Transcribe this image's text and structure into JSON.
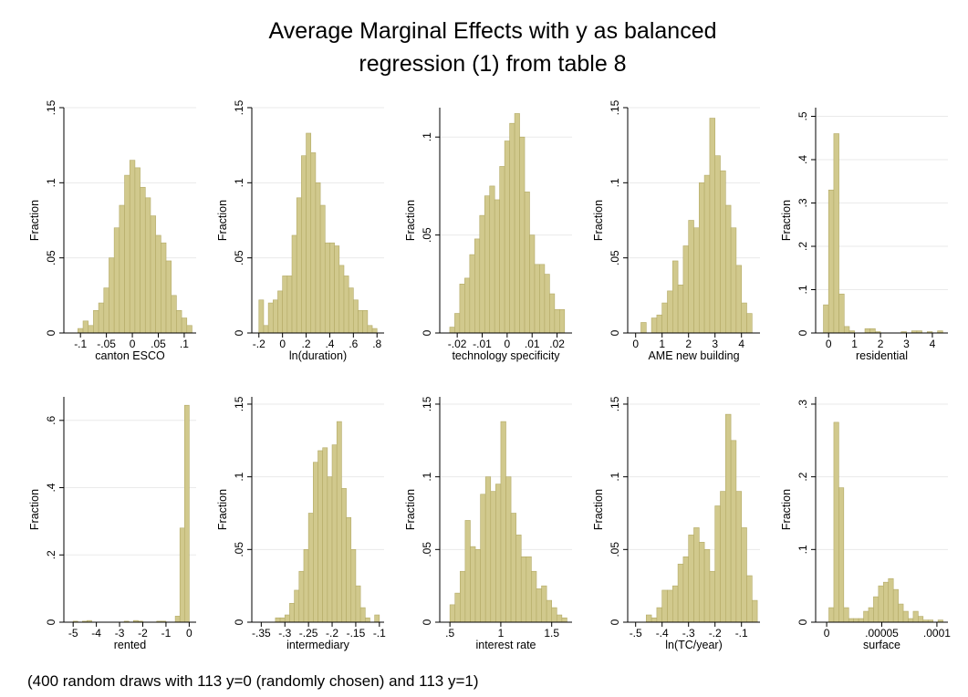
{
  "title": [
    "Average Marginal Effects with y as balanced",
    "regression (1) from table 8"
  ],
  "note": "(400 random draws with 113 y=0 (randomly chosen) and 113 y=1)",
  "chart_data": [
    {
      "type": "histogram",
      "xlabel": "canton ESCO",
      "ylabel": "Fraction",
      "color": "#d1c98d",
      "bins": [
        -0.105,
        -0.095,
        -0.085,
        -0.075,
        -0.065,
        -0.055,
        -0.045,
        -0.035,
        -0.025,
        -0.015,
        -0.005,
        0.005,
        0.015,
        0.025,
        0.035,
        0.045,
        0.055,
        0.065,
        0.075,
        0.085,
        0.095,
        0.105,
        0.115
      ],
      "values": [
        0.003,
        0.008,
        0.005,
        0.015,
        0.02,
        0.03,
        0.05,
        0.07,
        0.085,
        0.105,
        0.115,
        0.11,
        0.097,
        0.09,
        0.078,
        0.065,
        0.06,
        0.048,
        0.025,
        0.015,
        0.01,
        0.005
      ],
      "xlim": [
        -0.132,
        0.123
      ],
      "ylim": [
        0,
        0.15
      ],
      "xticks": [
        {
          "value": -0.1,
          "label": "-.1"
        },
        {
          "value": -0.05,
          "label": "-.05"
        },
        0,
        {
          "value": 0.05,
          "label": ".05"
        },
        {
          "value": 0.1,
          "label": ".1"
        }
      ],
      "yticks": [
        0,
        {
          "value": 0.05,
          "label": ".05"
        },
        {
          "value": 0.1,
          "label": ".1"
        },
        {
          "value": 0.15,
          "label": ".15"
        }
      ]
    },
    {
      "type": "histogram",
      "xlabel": "ln(duration)",
      "ylabel": "Fraction",
      "color": "#d1c98d",
      "bins": [
        -0.2,
        -0.16,
        -0.12,
        -0.08,
        -0.04,
        0,
        0.04,
        0.08,
        0.12,
        0.16,
        0.2,
        0.24,
        0.28,
        0.32,
        0.36,
        0.4,
        0.44,
        0.48,
        0.52,
        0.56,
        0.6,
        0.64,
        0.68,
        0.72,
        0.76,
        0.8
      ],
      "values": [
        0.022,
        0.005,
        0.02,
        0.022,
        0.028,
        0.038,
        0.038,
        0.065,
        0.09,
        0.118,
        0.133,
        0.12,
        0.1,
        0.085,
        0.06,
        0.06,
        0.058,
        0.045,
        0.038,
        0.03,
        0.022,
        0.015,
        0.015,
        0.005,
        0.003
      ],
      "xlim": [
        -0.26,
        0.86
      ],
      "ylim": [
        0,
        0.15
      ],
      "xticks": [
        {
          "value": -0.2,
          "label": "-.2"
        },
        0,
        {
          "value": 0.2,
          "label": ".2"
        },
        {
          "value": 0.4,
          "label": ".4"
        },
        {
          "value": 0.6,
          "label": ".6"
        },
        {
          "value": 0.8,
          "label": ".8"
        }
      ],
      "yticks": [
        0,
        {
          "value": 0.05,
          "label": ".05"
        },
        {
          "value": 0.1,
          "label": ".1"
        },
        {
          "value": 0.15,
          "label": ".15"
        }
      ]
    },
    {
      "type": "histogram",
      "xlabel": "technology specificity",
      "ylabel": "Fraction",
      "color": "#d1c98d",
      "bins": [
        -0.023,
        -0.021,
        -0.019,
        -0.017,
        -0.015,
        -0.013,
        -0.011,
        -0.009,
        -0.007,
        -0.005,
        -0.003,
        -0.001,
        0.001,
        0.003,
        0.005,
        0.007,
        0.009,
        0.011,
        0.013,
        0.015,
        0.017,
        0.019,
        0.021,
        0.023
      ],
      "values": [
        0.003,
        0.01,
        0.025,
        0.028,
        0.04,
        0.048,
        0.06,
        0.07,
        0.075,
        0.068,
        0.085,
        0.098,
        0.107,
        0.112,
        0.1,
        0.072,
        0.05,
        0.035,
        0.035,
        0.03,
        0.02,
        0.012,
        0.012
      ],
      "xlim": [
        -0.027,
        0.026
      ],
      "ylim": [
        0,
        0.115
      ],
      "xticks": [
        {
          "value": -0.02,
          "label": "-.02"
        },
        {
          "value": -0.01,
          "label": "-.01"
        },
        0,
        {
          "value": 0.01,
          "label": ".01"
        },
        {
          "value": 0.02,
          "label": ".02"
        }
      ],
      "yticks": [
        0,
        {
          "value": 0.05,
          "label": ".05"
        },
        {
          "value": 0.1,
          "label": ".1"
        }
      ]
    },
    {
      "type": "histogram",
      "xlabel": "AME new building",
      "ylabel": "Fraction",
      "color": "#d1c98d",
      "bins": [
        0.2,
        0.4,
        0.6,
        0.8,
        1.0,
        1.2,
        1.4,
        1.6,
        1.8,
        2.0,
        2.2,
        2.4,
        2.6,
        2.8,
        3.0,
        3.2,
        3.4,
        3.6,
        3.8,
        4.0,
        4.2,
        4.4
      ],
      "values": [
        0.007,
        0,
        0.01,
        0.012,
        0.02,
        0.028,
        0.048,
        0.032,
        0.058,
        0.075,
        0.07,
        0.1,
        0.105,
        0.143,
        0.118,
        0.108,
        0.085,
        0.07,
        0.045,
        0.02,
        0.013
      ],
      "xlim": [
        -0.3,
        4.7
      ],
      "ylim": [
        0,
        0.15
      ],
      "xticks": [
        0,
        1,
        2,
        3,
        4
      ],
      "yticks": [
        0,
        {
          "value": 0.05,
          "label": ".05"
        },
        {
          "value": 0.1,
          "label": ".1"
        },
        {
          "value": 0.15,
          "label": ".15"
        }
      ]
    },
    {
      "type": "histogram",
      "xlabel": "residential",
      "ylabel": "Fraction",
      "color": "#d1c98d",
      "bins": [
        -0.2,
        0,
        0.2,
        0.4,
        0.6,
        0.8,
        1.0,
        1.2,
        1.4,
        1.6,
        1.8,
        2.0,
        2.2,
        2.4,
        2.6,
        2.8,
        3.0,
        3.2,
        3.4,
        3.6,
        3.8,
        4.0,
        4.2,
        4.4
      ],
      "values": [
        0.065,
        0.33,
        0.46,
        0.09,
        0.015,
        0.005,
        0,
        0,
        0.01,
        0.01,
        0.003,
        0,
        0,
        0,
        0,
        0.003,
        0,
        0.005,
        0.005,
        0,
        0.003,
        0,
        0.005
      ],
      "xlim": [
        -0.5,
        4.6
      ],
      "ylim": [
        0,
        0.52
      ],
      "xticks": [
        0,
        1,
        2,
        3,
        4
      ],
      "yticks": [
        0,
        {
          "value": 0.1,
          "label": ".1"
        },
        {
          "value": 0.2,
          "label": ".2"
        },
        {
          "value": 0.3,
          "label": ".3"
        },
        {
          "value": 0.4,
          "label": ".4"
        },
        {
          "value": 0.5,
          "label": ".5"
        }
      ]
    },
    {
      "type": "histogram",
      "xlabel": "rented",
      "ylabel": "Fraction",
      "color": "#d1c98d",
      "bins": [
        -5.2,
        -5.0,
        -4.8,
        -4.6,
        -4.4,
        -4.2,
        -4.0,
        -3.8,
        -3.6,
        -3.4,
        -3.2,
        -3.0,
        -2.8,
        -2.6,
        -2.4,
        -2.2,
        -2.0,
        -1.8,
        -1.6,
        -1.4,
        -1.2,
        -1.0,
        -0.8,
        -0.6,
        -0.4,
        -0.2,
        0
      ],
      "values": [
        0,
        0.003,
        0,
        0.003,
        0.005,
        0,
        0,
        0,
        0,
        0,
        0,
        0,
        0.003,
        0,
        0.005,
        0.003,
        0,
        0,
        0,
        0.003,
        0.003,
        0,
        0,
        0.018,
        0.28,
        0.645
      ],
      "xlim": [
        -5.4,
        0.3
      ],
      "ylim": [
        0,
        0.67
      ],
      "xticks": [
        -5,
        -4,
        -3,
        -2,
        -1,
        0
      ],
      "yticks": [
        0,
        {
          "value": 0.2,
          "label": ".2"
        },
        {
          "value": 0.4,
          "label": ".4"
        },
        {
          "value": 0.6,
          "label": ".6"
        }
      ]
    },
    {
      "type": "histogram",
      "xlabel": "intermediary",
      "ylabel": "Fraction",
      "color": "#d1c98d",
      "bins": [
        -0.32,
        -0.31,
        -0.3,
        -0.29,
        -0.28,
        -0.27,
        -0.26,
        -0.25,
        -0.24,
        -0.23,
        -0.22,
        -0.21,
        -0.2,
        -0.19,
        -0.18,
        -0.17,
        -0.16,
        -0.15,
        -0.14,
        -0.13,
        -0.12,
        -0.11,
        -0.1
      ],
      "values": [
        0.003,
        0.003,
        0.005,
        0.013,
        0.022,
        0.035,
        0.05,
        0.075,
        0.11,
        0.118,
        0.12,
        0.1,
        0.122,
        0.138,
        0.092,
        0.072,
        0.05,
        0.025,
        0.01,
        0.003,
        0,
        0.005
      ],
      "xlim": [
        -0.37,
        -0.09
      ],
      "ylim": [
        0,
        0.155
      ],
      "xticks": [
        {
          "value": -0.35,
          "label": "-.35"
        },
        {
          "value": -0.3,
          "label": "-.3"
        },
        {
          "value": -0.25,
          "label": "-.25"
        },
        {
          "value": -0.2,
          "label": "-.2"
        },
        {
          "value": -0.15,
          "label": "-.15"
        },
        {
          "value": -0.1,
          "label": "-.1"
        }
      ],
      "yticks": [
        0,
        {
          "value": 0.05,
          "label": ".05"
        },
        {
          "value": 0.1,
          "label": ".1"
        },
        {
          "value": 0.15,
          "label": ".15"
        }
      ]
    },
    {
      "type": "histogram",
      "xlabel": "interest rate",
      "ylabel": "Fraction",
      "color": "#d1c98d",
      "bins": [
        0.5,
        0.55,
        0.6,
        0.65,
        0.7,
        0.75,
        0.8,
        0.85,
        0.9,
        0.95,
        1.0,
        1.05,
        1.1,
        1.15,
        1.2,
        1.25,
        1.3,
        1.35,
        1.4,
        1.45,
        1.5,
        1.55,
        1.6,
        1.65
      ],
      "values": [
        0.012,
        0.02,
        0.035,
        0.07,
        0.052,
        0.05,
        0.088,
        0.1,
        0.09,
        0.095,
        0.138,
        0.1,
        0.075,
        0.06,
        0.045,
        0.045,
        0.035,
        0.023,
        0.025,
        0.015,
        0.01,
        0.005,
        0.003
      ],
      "xlim": [
        0.4,
        1.7
      ],
      "ylim": [
        0,
        0.155
      ],
      "xticks": [
        {
          "value": 0.5,
          "label": ".5"
        },
        1,
        1.5
      ],
      "yticks": [
        0,
        {
          "value": 0.05,
          "label": ".05"
        },
        {
          "value": 0.1,
          "label": ".1"
        },
        {
          "value": 0.15,
          "label": ".15"
        }
      ]
    },
    {
      "type": "histogram",
      "xlabel": "ln(TC/year)",
      "ylabel": "Fraction",
      "color": "#d1c98d",
      "bins": [
        -0.46,
        -0.44,
        -0.42,
        -0.4,
        -0.38,
        -0.36,
        -0.34,
        -0.32,
        -0.3,
        -0.28,
        -0.26,
        -0.24,
        -0.22,
        -0.2,
        -0.18,
        -0.16,
        -0.14,
        -0.12,
        -0.1,
        -0.08,
        -0.06,
        -0.04
      ],
      "values": [
        0.005,
        0.003,
        0.01,
        0.022,
        0.022,
        0.025,
        0.04,
        0.045,
        0.06,
        0.065,
        0.055,
        0.05,
        0.035,
        0.08,
        0.09,
        0.143,
        0.125,
        0.09,
        0.065,
        0.032,
        0.015
      ],
      "xlim": [
        -0.53,
        -0.03
      ],
      "ylim": [
        0,
        0.155
      ],
      "xticks": [
        {
          "value": -0.5,
          "label": "-.5"
        },
        {
          "value": -0.4,
          "label": "-.4"
        },
        {
          "value": -0.3,
          "label": "-.3"
        },
        {
          "value": -0.2,
          "label": "-.2"
        },
        {
          "value": -0.1,
          "label": "-.1"
        }
      ],
      "yticks": [
        0,
        {
          "value": 0.05,
          "label": ".05"
        },
        {
          "value": 0.1,
          "label": ".1"
        },
        {
          "value": 0.15,
          "label": ".15"
        }
      ]
    },
    {
      "type": "histogram",
      "xlabel": "surface",
      "ylabel": "Fraction",
      "color": "#d1c98d",
      "bins": [
        2e-06,
        6.5e-06,
        1.1e-05,
        1.55e-05,
        2e-05,
        2.45e-05,
        2.9e-05,
        3.35e-05,
        3.8e-05,
        4.25e-05,
        4.7e-05,
        5.15e-05,
        5.6e-05,
        6.05e-05,
        6.5e-05,
        6.95e-05,
        7.4e-05,
        7.85e-05,
        8.3e-05,
        8.75e-05,
        9.2e-05,
        9.65e-05,
        0.000101,
        0.0001055
      ],
      "values": [
        0.02,
        0.275,
        0.185,
        0.02,
        0.005,
        0.005,
        0.005,
        0.015,
        0.02,
        0.035,
        0.05,
        0.055,
        0.06,
        0.045,
        0.025,
        0.015,
        0.005,
        0.015,
        0.008,
        0.003,
        0.003,
        0,
        0.003
      ],
      "xlim": [
        -1e-05,
        0.00011
      ],
      "ylim": [
        0,
        0.31
      ],
      "xticks": [
        0,
        {
          "value": 5e-05,
          "label": ".00005"
        },
        {
          "value": 0.0001,
          "label": ".0001"
        }
      ],
      "yticks": [
        0,
        {
          "value": 0.1,
          "label": ".1"
        },
        {
          "value": 0.2,
          "label": ".2"
        },
        {
          "value": 0.3,
          "label": ".3"
        }
      ]
    }
  ]
}
